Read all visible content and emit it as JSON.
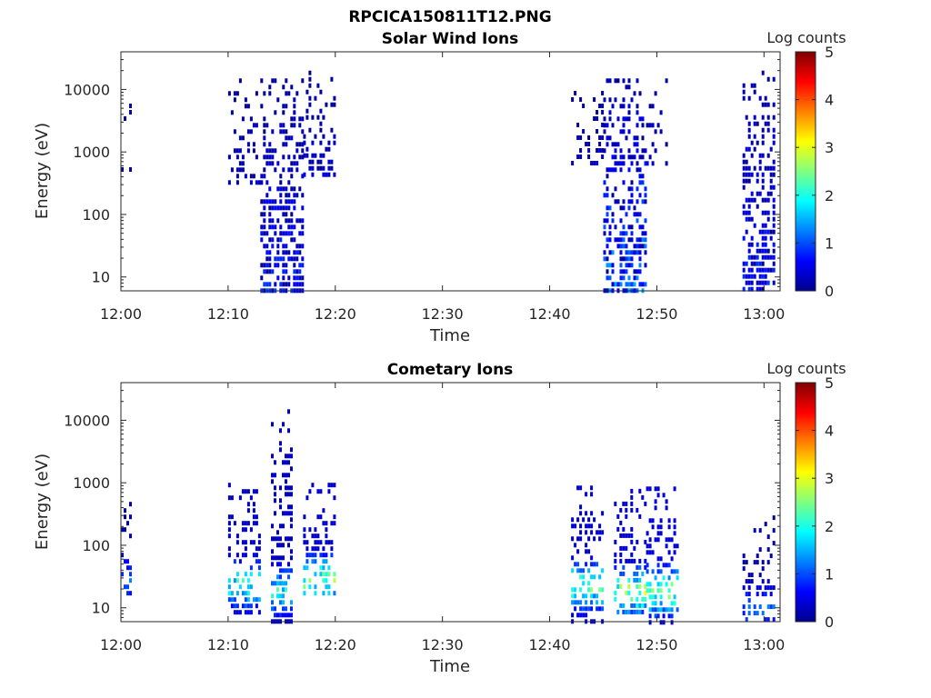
{
  "figure_title": "RPCICA150811T12.PNG",
  "colormap": [
    "#00008f",
    "#0000ff",
    "#0080ff",
    "#00ffff",
    "#80ff80",
    "#ffff00",
    "#ff8000",
    "#ff0000",
    "#800000"
  ],
  "chart_data": [
    {
      "type": "heatmap",
      "title": "Solar Wind Ions",
      "xlabel": "Time",
      "ylabel": "Energy (eV)",
      "y_scale": "log",
      "ylim": [
        6,
        40000
      ],
      "x_ticks": [
        "12:00",
        "12:10",
        "12:20",
        "12:30",
        "12:40",
        "12:50",
        "13:00"
      ],
      "y_ticks": [
        "10",
        "100",
        "1000",
        "10000"
      ],
      "colorbar": {
        "label": "Log counts",
        "range": [
          0,
          5
        ],
        "ticks": [
          "0",
          "1",
          "2",
          "3",
          "4",
          "5"
        ]
      },
      "bursts": [
        {
          "start": "12:00",
          "end": "12:01",
          "e_min": 500,
          "e_max": 12000,
          "peak": 0.3,
          "density": 0.2
        },
        {
          "start": "12:10",
          "end": "12:13",
          "e_min": 300,
          "e_max": 15000,
          "peak": 0.5,
          "density": 0.3
        },
        {
          "start": "12:13",
          "end": "12:17",
          "e_min": 6,
          "e_max": 15000,
          "peak": 1.0,
          "density": 0.55
        },
        {
          "start": "12:17",
          "end": "12:20",
          "e_min": 400,
          "e_max": 20000,
          "peak": 0.5,
          "density": 0.3
        },
        {
          "start": "12:42",
          "end": "12:45",
          "e_min": 600,
          "e_max": 12000,
          "peak": 0.5,
          "density": 0.3
        },
        {
          "start": "12:45",
          "end": "12:49",
          "e_min": 6,
          "e_max": 15000,
          "peak": 1.6,
          "density": 0.5
        },
        {
          "start": "12:49",
          "end": "12:51",
          "e_min": 600,
          "e_max": 15000,
          "peak": 0.5,
          "density": 0.3
        },
        {
          "start": "12:58",
          "end": "13:01",
          "e_min": 6,
          "e_max": 20000,
          "peak": 1.0,
          "density": 0.5
        }
      ]
    },
    {
      "type": "heatmap",
      "title": "Cometary Ions",
      "xlabel": "Time",
      "ylabel": "Energy (eV)",
      "y_scale": "log",
      "ylim": [
        6,
        40000
      ],
      "x_ticks": [
        "12:00",
        "12:10",
        "12:20",
        "12:30",
        "12:40",
        "12:50",
        "13:00"
      ],
      "y_ticks": [
        "10",
        "100",
        "1000",
        "10000"
      ],
      "colorbar": {
        "label": "Log counts",
        "range": [
          0,
          5
        ],
        "ticks": [
          "0",
          "1",
          "2",
          "3",
          "4",
          "5"
        ]
      },
      "bursts": [
        {
          "start": "12:00",
          "end": "12:01",
          "e_min": 15,
          "e_max": 1000,
          "peak": 1.2,
          "core": 30,
          "density": 0.3
        },
        {
          "start": "12:10",
          "end": "12:13",
          "e_min": 8,
          "e_max": 1000,
          "peak": 2.4,
          "core": 25,
          "density": 0.45
        },
        {
          "start": "12:14",
          "end": "12:16",
          "e_min": 6,
          "e_max": 15000,
          "peak": 2.2,
          "core": 20,
          "density": 0.45
        },
        {
          "start": "12:17",
          "end": "12:20",
          "e_min": 15,
          "e_max": 1000,
          "peak": 2.8,
          "core": 30,
          "density": 0.45
        },
        {
          "start": "12:42",
          "end": "12:45",
          "e_min": 6,
          "e_max": 900,
          "peak": 2.8,
          "core": 25,
          "density": 0.45
        },
        {
          "start": "12:46",
          "end": "12:49",
          "e_min": 8,
          "e_max": 800,
          "peak": 3.0,
          "core": 20,
          "density": 0.45
        },
        {
          "start": "12:49",
          "end": "12:52",
          "e_min": 6,
          "e_max": 1100,
          "peak": 3.0,
          "core": 20,
          "density": 0.45
        },
        {
          "start": "12:58",
          "end": "13:01",
          "e_min": 6,
          "e_max": 300,
          "peak": 1.3,
          "core": 10,
          "density": 0.3
        }
      ]
    }
  ]
}
